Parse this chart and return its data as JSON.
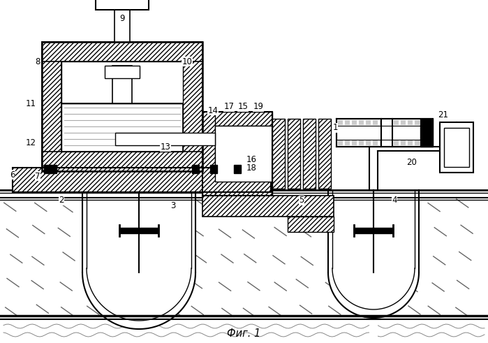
{
  "title": "Фиг. 1",
  "bg": "#ffffff",
  "lc": "#000000",
  "figsize": [
    6.99,
    4.91
  ],
  "dpi": 100
}
